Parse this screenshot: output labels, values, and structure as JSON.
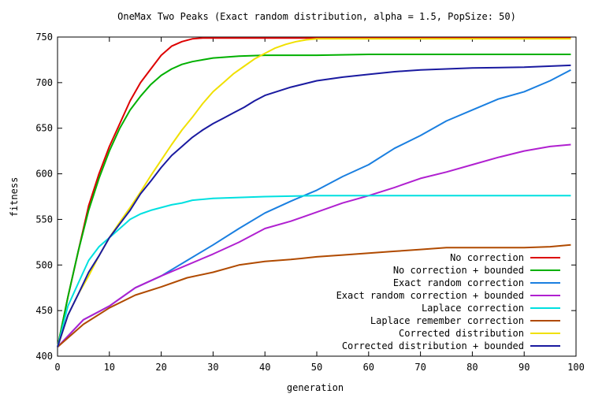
{
  "chart_data": {
    "type": "line",
    "title": "OneMax Two Peaks (Exact random distribution, alpha = 1.5, PopSize: 50)",
    "xlabel": "generation",
    "ylabel": "fitness",
    "xlim": [
      0,
      100
    ],
    "ylim": [
      400,
      750
    ],
    "xticks": [
      0,
      10,
      20,
      30,
      40,
      50,
      60,
      70,
      80,
      90,
      100
    ],
    "yticks": [
      400,
      450,
      500,
      550,
      600,
      650,
      700,
      750
    ],
    "grid": false,
    "legend_position": "bottom-right",
    "series": [
      {
        "name": "No correction",
        "color": "#dd0000",
        "x": [
          0,
          2,
          4,
          6,
          8,
          10,
          12,
          14,
          16,
          18,
          20,
          22,
          24,
          26,
          28,
          30,
          35,
          40,
          50,
          60,
          70,
          80,
          90,
          99
        ],
        "y": [
          410,
          465,
          515,
          565,
          600,
          630,
          655,
          680,
          700,
          715,
          730,
          740,
          745,
          748,
          749,
          749,
          749,
          749,
          749,
          749,
          749,
          749,
          749,
          749
        ]
      },
      {
        "name": "No correction + bounded",
        "color": "#00b000",
        "x": [
          0,
          2,
          4,
          6,
          8,
          10,
          12,
          14,
          16,
          18,
          20,
          22,
          24,
          26,
          28,
          30,
          35,
          40,
          50,
          60,
          70,
          80,
          90,
          99
        ],
        "y": [
          410,
          465,
          515,
          560,
          595,
          625,
          650,
          670,
          685,
          698,
          708,
          715,
          720,
          723,
          725,
          727,
          729,
          730,
          730,
          731,
          731,
          731,
          731,
          731
        ]
      },
      {
        "name": "Exact random correction",
        "color": "#1a7fe0",
        "x": [
          0,
          5,
          10,
          15,
          20,
          25,
          30,
          35,
          40,
          45,
          50,
          55,
          60,
          65,
          70,
          75,
          80,
          85,
          90,
          95,
          99
        ],
        "y": [
          410,
          440,
          455,
          475,
          488,
          505,
          522,
          540,
          557,
          570,
          582,
          597,
          610,
          628,
          642,
          658,
          670,
          682,
          690,
          702,
          714
        ]
      },
      {
        "name": "Exact random correction + bounded",
        "color": "#b020d0",
        "x": [
          0,
          5,
          10,
          15,
          20,
          25,
          30,
          35,
          40,
          45,
          50,
          55,
          60,
          65,
          70,
          75,
          80,
          85,
          90,
          95,
          99
        ],
        "y": [
          410,
          440,
          455,
          475,
          488,
          500,
          512,
          525,
          540,
          548,
          558,
          568,
          576,
          585,
          595,
          602,
          610,
          618,
          625,
          630,
          632
        ]
      },
      {
        "name": "Laplace correction",
        "color": "#00e0e0",
        "x": [
          0,
          2,
          4,
          6,
          8,
          10,
          12,
          14,
          16,
          18,
          20,
          22,
          24,
          26,
          30,
          40,
          50,
          60,
          70,
          80,
          90,
          99
        ],
        "y": [
          410,
          455,
          480,
          505,
          520,
          530,
          540,
          550,
          556,
          560,
          563,
          566,
          568,
          571,
          573,
          575,
          576,
          576,
          576,
          576,
          576,
          576
        ]
      },
      {
        "name": "Laplace remember correction",
        "color": "#b04a00",
        "x": [
          0,
          5,
          10,
          15,
          20,
          25,
          30,
          35,
          40,
          45,
          50,
          55,
          60,
          65,
          70,
          75,
          80,
          85,
          90,
          95,
          99
        ],
        "y": [
          410,
          435,
          453,
          467,
          476,
          486,
          492,
          500,
          504,
          506,
          509,
          511,
          513,
          515,
          517,
          519,
          519,
          519,
          519,
          520,
          522
        ]
      },
      {
        "name": "Corrected distribution",
        "color": "#f0e000",
        "x": [
          0,
          2,
          4,
          6,
          8,
          10,
          12,
          14,
          16,
          18,
          20,
          22,
          24,
          26,
          28,
          30,
          32,
          34,
          36,
          38,
          40,
          42,
          44,
          46,
          48,
          50,
          55,
          60,
          70,
          80,
          90,
          99
        ],
        "y": [
          410,
          445,
          468,
          488,
          510,
          530,
          547,
          563,
          580,
          598,
          615,
          632,
          648,
          662,
          677,
          690,
          700,
          710,
          718,
          726,
          732,
          738,
          742,
          745,
          747,
          748,
          748,
          748,
          748,
          748,
          748,
          748
        ]
      },
      {
        "name": "Corrected distribution + bounded",
        "color": "#1a1aa0",
        "x": [
          0,
          2,
          4,
          6,
          8,
          10,
          12,
          14,
          16,
          18,
          20,
          22,
          24,
          26,
          28,
          30,
          32,
          34,
          36,
          38,
          40,
          45,
          50,
          55,
          60,
          65,
          70,
          80,
          90,
          99
        ],
        "y": [
          410,
          445,
          468,
          492,
          510,
          530,
          545,
          560,
          578,
          592,
          607,
          620,
          630,
          640,
          648,
          655,
          661,
          667,
          673,
          680,
          686,
          695,
          702,
          706,
          709,
          712,
          714,
          716,
          717,
          719
        ]
      }
    ]
  }
}
